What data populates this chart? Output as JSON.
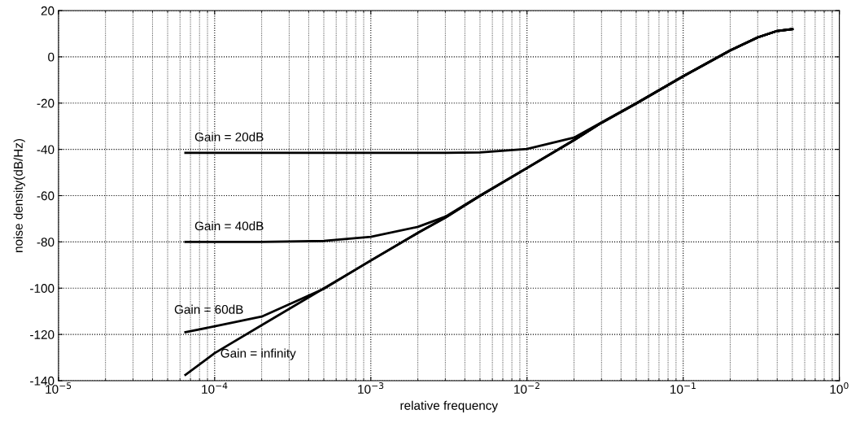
{
  "chart_data": {
    "type": "line",
    "xlabel": "relative frequency",
    "ylabel": "noise density(dB/Hz)",
    "log": "x",
    "grid": true,
    "legend": false,
    "marker": "none",
    "line_style": "solid",
    "xlim": [
      1e-05,
      1
    ],
    "ylim": [
      -140,
      20
    ],
    "xticks": [
      {
        "value": 1e-05,
        "label": "10$^{−5}$"
      },
      {
        "value": 0.0001,
        "label": "10$^{−4}$"
      },
      {
        "value": 0.001,
        "label": "10$^{−3}$"
      },
      {
        "value": 0.01,
        "label": "10$^{−2}$"
      },
      {
        "value": 0.1,
        "label": "10$^{−1}$"
      },
      {
        "value": 1,
        "label": "10$^{0}$"
      }
    ],
    "yticks": [
      -140,
      -120,
      -100,
      -80,
      -60,
      -40,
      -20,
      0,
      20
    ],
    "x": [
      6.5e-05,
      0.0001,
      0.0002,
      0.0005,
      0.001,
      0.002,
      0.003,
      0.005,
      0.01,
      0.02,
      0.03,
      0.05,
      0.1,
      0.2,
      0.3,
      0.4,
      0.5
    ],
    "series": [
      {
        "name": "Gain = 20dB",
        "color": "#000000",
        "values": [
          -41.5,
          -41.5,
          -41.5,
          -41.5,
          -41.5,
          -41.5,
          -41.5,
          -41.3,
          -39.8,
          -34.9,
          -28.3,
          -20.1,
          -8.4,
          2.8,
          8.4,
          11.2,
          12.0
        ]
      },
      {
        "name": "Gain = 40dB",
        "color": "#000000",
        "values": [
          -80,
          -80,
          -80,
          -79.6,
          -77.8,
          -73.5,
          -69.1,
          -60,
          -48,
          -36,
          -28.5,
          -20.2,
          -8.4,
          2.8,
          8.4,
          11.2,
          12.0
        ]
      },
      {
        "name": "Gain = 60dB",
        "color": "#000000",
        "values": [
          -119,
          -116.5,
          -112.3,
          -100.3,
          -88,
          -76.1,
          -69.5,
          -60.1,
          -48.1,
          -36,
          -28.5,
          -20.2,
          -8.4,
          2.8,
          8.4,
          11.2,
          12.0
        ]
      },
      {
        "name": "Gain = infinity",
        "color": "#000000",
        "values": [
          -137.5,
          -128.1,
          -116,
          -100.1,
          -88.1,
          -76.1,
          -69.5,
          -60.1,
          -48.1,
          -36,
          -28.5,
          -20.2,
          -8.4,
          2.8,
          8.4,
          11.2,
          12.0
        ]
      }
    ]
  }
}
